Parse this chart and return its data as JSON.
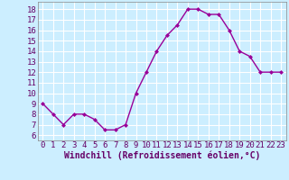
{
  "x": [
    0,
    1,
    2,
    3,
    4,
    5,
    6,
    7,
    8,
    9,
    10,
    11,
    12,
    13,
    14,
    15,
    16,
    17,
    18,
    19,
    20,
    21,
    22,
    23
  ],
  "y": [
    9,
    8,
    7,
    8,
    8,
    7.5,
    6.5,
    6.5,
    7,
    10,
    12,
    14,
    15.5,
    16.5,
    18,
    18,
    17.5,
    17.5,
    16,
    14,
    13.5,
    12,
    12,
    12
  ],
  "line_color": "#990099",
  "marker": "D",
  "marker_size": 2.0,
  "bg_color": "#cceeff",
  "grid_color": "#ffffff",
  "xlabel": "Windchill (Refroidissement éolien,°C)",
  "xlim": [
    -0.5,
    23.5
  ],
  "ylim": [
    5.5,
    18.7
  ],
  "yticks": [
    6,
    7,
    8,
    9,
    10,
    11,
    12,
    13,
    14,
    15,
    16,
    17,
    18
  ],
  "xticks": [
    0,
    1,
    2,
    3,
    4,
    5,
    6,
    7,
    8,
    9,
    10,
    11,
    12,
    13,
    14,
    15,
    16,
    17,
    18,
    19,
    20,
    21,
    22,
    23
  ],
  "tick_label_fontsize": 6.5,
  "xlabel_fontsize": 7.0,
  "line_width": 1.0
}
